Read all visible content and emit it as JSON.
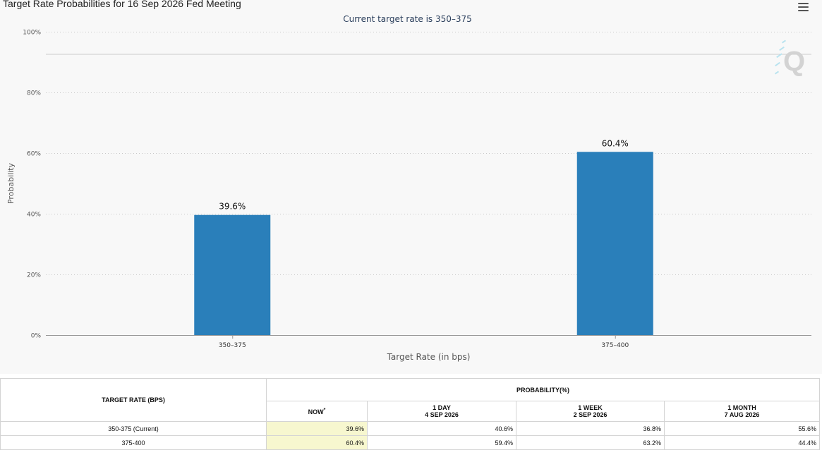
{
  "chart_data": {
    "type": "bar",
    "title": "Target Rate Probabilities for 16 Sep 2026 Fed Meeting",
    "subtitle": "Current target rate is 350–375",
    "xlabel": "Target Rate (in bps)",
    "ylabel": "Probability",
    "categories": [
      "350–375",
      "375–400"
    ],
    "values": [
      39.6,
      60.4
    ],
    "data_labels": [
      "39.6%",
      "60.4%"
    ],
    "ylim": [
      0,
      100
    ],
    "yticks": [
      0,
      20,
      40,
      60,
      80,
      100
    ],
    "ytick_labels": [
      "0%",
      "20%",
      "40%",
      "60%",
      "80%",
      "100%"
    ],
    "grid": true,
    "bar_color": "#2a7fba"
  },
  "menu": {
    "icon": "hamburger-menu-icon"
  },
  "watermark": {
    "icon": "q-logo-icon",
    "letter": "Q"
  },
  "table": {
    "col_rate_header": "TARGET RATE (BPS)",
    "probability_header": "PROBABILITY(%)",
    "now_header": "NOW",
    "now_marker": "*",
    "periods": [
      {
        "line1": "1 DAY",
        "line2": "4 SEP 2026"
      },
      {
        "line1": "1 WEEK",
        "line2": "2 SEP 2026"
      },
      {
        "line1": "1 MONTH",
        "line2": "7 AUG 2026"
      }
    ],
    "rows": [
      {
        "rate": "350-375 (Current)",
        "now": "39.6%",
        "day": "40.6%",
        "week": "36.8%",
        "month": "55.6%"
      },
      {
        "rate": "375-400",
        "now": "60.4%",
        "day": "59.4%",
        "week": "63.2%",
        "month": "44.4%"
      }
    ]
  }
}
